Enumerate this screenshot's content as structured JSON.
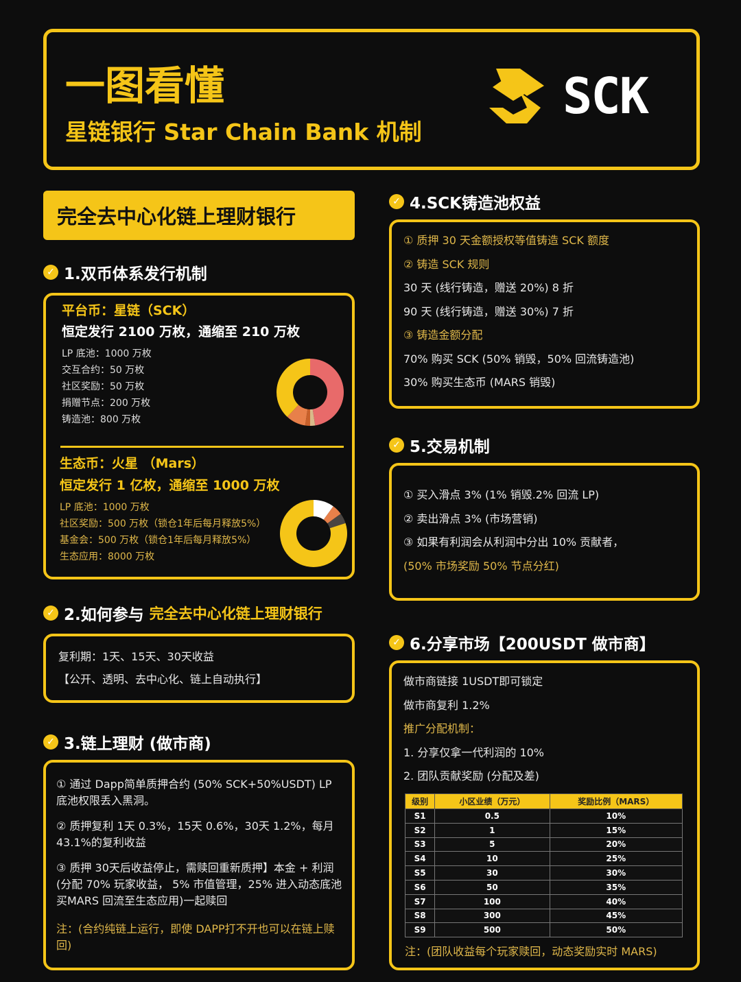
{
  "header": {
    "title": "一图看懂",
    "subtitle": "星链银行 Star  Chain Bank 机制",
    "logo_text": "SCK"
  },
  "banner": "完全去中心化链上理财银行",
  "s1": {
    "heading": "1.双币体系发行机制",
    "sck": {
      "title": "平台币：星链（SCK）",
      "issue": "恒定发行 2100 万枚，通缩至 210 万枚",
      "items": [
        "LP 底池：1000 万枚",
        "交互合约：50 万枚",
        "社区奖励：50 万枚",
        "捐赠节点：200 万枚",
        "铸造池：800 万枚"
      ]
    },
    "mars": {
      "title": "生态币：火星 （Mars）",
      "issue": "恒定发行 1 亿枚，通缩至 1000 万枚",
      "items": [
        "LP 底池：1000 万枚",
        "社区奖励：500 万枚（锁仓1年后每月释放5%）",
        "基金会：500 万枚（锁仓1年后每月释放5%）",
        "生态应用：8000 万枚"
      ]
    }
  },
  "chart_data": [
    {
      "type": "pie",
      "donut": true,
      "categories": [
        "LP 底池",
        "交互合约",
        "社区奖励",
        "捐赠节点",
        "铸造池"
      ],
      "values": [
        1000,
        50,
        50,
        200,
        800
      ],
      "colors": [
        "#e86a6a",
        "#d9b98a",
        "#c8602a",
        "#e8804a",
        "#f5c518"
      ]
    },
    {
      "type": "pie",
      "donut": true,
      "categories": [
        "LP 底池",
        "社区奖励",
        "基金会",
        "生态应用"
      ],
      "values": [
        1000,
        500,
        500,
        8000
      ],
      "colors": [
        "#ffffff",
        "#e8804a",
        "#4a4542",
        "#f5c518"
      ]
    }
  ],
  "s2": {
    "heading_a": "2.如何参与",
    "heading_b": "完全去中心化链上理财银行",
    "lines": [
      "复利期：1天、15天、30天收益",
      "【公开、透明、去中心化、链上自动执行】"
    ]
  },
  "s3": {
    "heading": "3.链上理财 (做市商)",
    "p1": "① 通过 Dapp简单质押合约 (50% SCK+50%USDT) LP 底池权限丢入黑洞。",
    "p2": "② 质押复利 1天 0.3%，15天 0.6%，30天 1.2%，每月 43.1%的复利收益",
    "p3": "③ 质押 30天后收益停止，需赎回重新质押】本金 + 利润 (分配 70% 玩家收益， 5% 市值管理，25% 进入动态底池买MARS 回流至生态应用)一起赎回",
    "note": "注：(合约纯链上运行，即使 DAPP打不开也可以在链上赎回)"
  },
  "s4": {
    "heading": "4.SCK铸造池权益",
    "lines": [
      {
        "t": "① 质押 30 天金额授权等值铸造 SCK 额度",
        "hl": true
      },
      {
        "t": "② 铸造 SCK 规则",
        "hl": true
      },
      {
        "t": "30 天 (线行铸造，赠送 20%) 8 折",
        "hl": false
      },
      {
        "t": "90 天 (线行铸造，赠送 30%) 7 折",
        "hl": false
      },
      {
        "t": "③ 铸造金额分配",
        "hl": true
      },
      {
        "t": "70% 购买 SCK (50% 销毁，50% 回流铸造池)",
        "hl": false
      },
      {
        "t": "30% 购买生态币 (MARS 销毁)",
        "hl": false
      }
    ]
  },
  "s5": {
    "heading": "5.交易机制",
    "lines": [
      {
        "t": "① 买入滑点 3% (1% 销毁.2% 回流 LP)",
        "hl": false
      },
      {
        "t": "② 卖出滑点 3% (市场营销)",
        "hl": false
      },
      {
        "t": "③ 如果有利润会从利润中分出 10% 贡献者，",
        "hl": false
      },
      {
        "t": "(50% 市场奖励 50% 节点分红)",
        "hl": true
      }
    ]
  },
  "s6": {
    "heading": "6.分享市场【200USDT 做市商】",
    "lines": [
      {
        "t": "做市商链接 1USDT即可锁定",
        "hl": false
      },
      {
        "t": "做市商复利 1.2%",
        "hl": false
      },
      {
        "t": "推广分配机制：",
        "hl": true
      },
      {
        "t": "1. 分享仅拿一代利润的 10%",
        "hl": false
      },
      {
        "t": "2. 团队贡献奖励 (分配及差)",
        "hl": false
      }
    ],
    "table": {
      "headers": [
        "级别",
        "小区业绩（万元）",
        "奖励比例（MARS）"
      ],
      "rows": [
        [
          "S1",
          "0.5",
          "10%"
        ],
        [
          "S2",
          "1",
          "15%"
        ],
        [
          "S3",
          "5",
          "20%"
        ],
        [
          "S4",
          "10",
          "25%"
        ],
        [
          "S5",
          "30",
          "30%"
        ],
        [
          "S6",
          "50",
          "35%"
        ],
        [
          "S7",
          "100",
          "40%"
        ],
        [
          "S8",
          "300",
          "45%"
        ],
        [
          "S9",
          "500",
          "50%"
        ]
      ]
    },
    "note": "注：(团队收益每个玩家赎回，动态奖励实时 MARS)"
  }
}
